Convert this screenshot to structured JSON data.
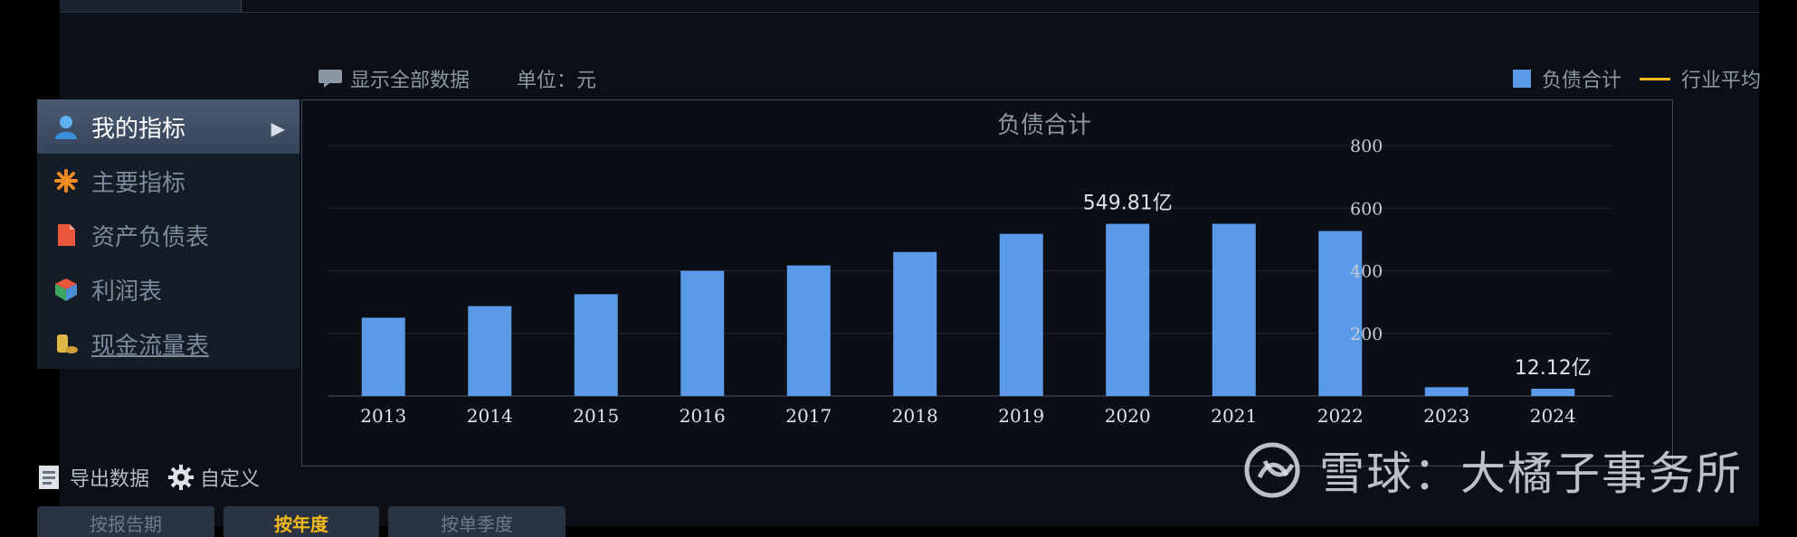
{
  "toolbar": {
    "show_all_label": "显示全部数据",
    "unit_label": "单位：元"
  },
  "legend": {
    "series_label": "负债合计",
    "avg_label": "行业平均"
  },
  "sidebar": {
    "items": [
      {
        "label": "我的指标",
        "icon": "user-icon"
      },
      {
        "label": "主要指标",
        "icon": "asterisk-icon"
      },
      {
        "label": "资产负债表",
        "icon": "document-icon"
      },
      {
        "label": "利润表",
        "icon": "cube-icon"
      },
      {
        "label": "现金流量表",
        "icon": "coins-icon"
      }
    ]
  },
  "tools": {
    "export_label": "导出数据",
    "custom_label": "自定义"
  },
  "bottom_tabs": [
    "按报告期",
    "按年度",
    "按单季度"
  ],
  "watermark": "雪球：大橘子事务所",
  "colors": {
    "bar": "#5b9ae8",
    "industry_avg": "#f1b91a"
  },
  "chart_data": {
    "type": "bar",
    "title": "负债合计",
    "categories": [
      "2013",
      "2014",
      "2015",
      "2016",
      "2017",
      "2018",
      "2019",
      "2020",
      "2021",
      "2022",
      "2023",
      "2024"
    ],
    "series": [
      {
        "name": "负债合计",
        "values": [
          250,
          287,
          325,
          400,
          417,
          460,
          518,
          549.81,
          550,
          527,
          28,
          12.12
        ]
      }
    ],
    "data_labels": [
      {
        "category": "2020",
        "text": "549.81亿"
      },
      {
        "category": "2024",
        "text": "12.12亿"
      }
    ],
    "yticks": [
      200,
      400,
      600,
      800
    ],
    "ylim": [
      0,
      800
    ],
    "grid": true,
    "y_axis_side": "right"
  }
}
